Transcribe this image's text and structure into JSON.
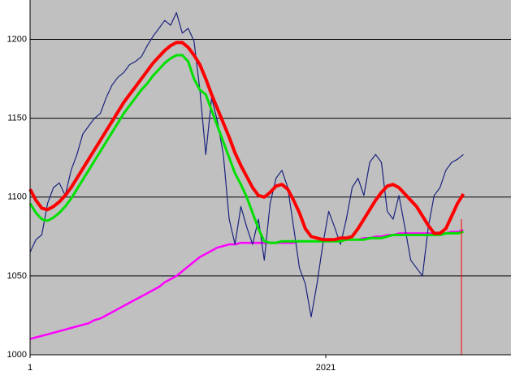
{
  "chart_data": {
    "type": "line",
    "x": [
      1,
      41,
      81,
      121,
      161,
      201,
      241,
      281,
      321,
      361,
      401,
      441,
      481,
      521,
      561,
      601,
      641,
      681,
      721,
      761,
      801,
      841,
      881,
      921,
      961,
      1001,
      1041,
      1081,
      1121,
      1161,
      1201,
      1241,
      1281,
      1321,
      1361,
      1401,
      1441,
      1481,
      1521,
      1561,
      1601,
      1641,
      1681,
      1721,
      1761,
      1801,
      1841,
      1881,
      1921,
      1961,
      2001,
      2041,
      2081,
      2121,
      2161,
      2201,
      2241,
      2281,
      2321,
      2361,
      2401,
      2441,
      2481,
      2521,
      2561,
      2601,
      2641,
      2681,
      2721,
      2761,
      2801,
      2841,
      2881,
      2921,
      2961
    ],
    "series": [
      {
        "color": "#1a237e",
        "values": [
          1065,
          1073,
          1076,
          1096,
          1106,
          1109,
          1101,
          1117,
          1127,
          1140,
          1145,
          1150,
          1153,
          1163,
          1171,
          1176,
          1179,
          1184,
          1186,
          1189,
          1196,
          1202,
          1207,
          1212,
          1209,
          1217,
          1204,
          1207,
          1199,
          1168,
          1127,
          1163,
          1148,
          1127,
          1086,
          1070,
          1094,
          1081,
          1070,
          1086,
          1060,
          1096,
          1112,
          1117,
          1106,
          1081,
          1055,
          1045,
          1024,
          1045,
          1070,
          1091,
          1081,
          1070,
          1086,
          1106,
          1112,
          1101,
          1122,
          1127,
          1122,
          1091,
          1086,
          1101,
          1081,
          1060,
          1055,
          1050,
          1081,
          1101,
          1106,
          1117,
          1122,
          1124,
          1127
        ]
      },
      {
        "color": "#ff0000",
        "values": [
          1105,
          1098,
          1093,
          1092,
          1094,
          1097,
          1101,
          1106,
          1112,
          1118,
          1124,
          1130,
          1136,
          1142,
          1148,
          1154,
          1160,
          1165,
          1170,
          1175,
          1180,
          1185,
          1189,
          1193,
          1196,
          1198,
          1198,
          1195,
          1190,
          1184,
          1175,
          1165,
          1156,
          1147,
          1138,
          1128,
          1120,
          1113,
          1106,
          1101,
          1100,
          1103,
          1107,
          1108,
          1105,
          1098,
          1090,
          1080,
          1075,
          1074,
          1073,
          1073,
          1073,
          1074,
          1074,
          1075,
          1080,
          1086,
          1092,
          1098,
          1103,
          1107,
          1108,
          1106,
          1102,
          1098,
          1094,
          1088,
          1082,
          1077,
          1077,
          1080,
          1088,
          1096,
          1102
        ]
      },
      {
        "color": "#00e000",
        "values": [
          1096,
          1090,
          1086,
          1085,
          1087,
          1090,
          1094,
          1099,
          1105,
          1111,
          1117,
          1123,
          1129,
          1135,
          1141,
          1147,
          1153,
          1158,
          1163,
          1168,
          1172,
          1177,
          1181,
          1185,
          1188,
          1190,
          1190,
          1186,
          1175,
          1168,
          1165,
          1155,
          1145,
          1135,
          1125,
          1115,
          1108,
          1100,
          1090,
          1080,
          1072,
          1071,
          1071,
          1072,
          1072,
          1072,
          1072,
          1072,
          1072,
          1072,
          1072,
          1072,
          1072,
          1072,
          1073,
          1073,
          1073,
          1073,
          1074,
          1074,
          1074,
          1075,
          1076,
          1076,
          1076,
          1076,
          1076,
          1076,
          1076,
          1076,
          1076,
          1077,
          1077,
          1077,
          1078
        ]
      },
      {
        "color": "#ff00ff",
        "values": [
          1010,
          1011,
          1012,
          1013,
          1014,
          1015,
          1016,
          1017,
          1018,
          1019,
          1020,
          1022,
          1023,
          1025,
          1027,
          1029,
          1031,
          1033,
          1035,
          1037,
          1039,
          1041,
          1043,
          1046,
          1048,
          1050,
          1053,
          1056,
          1059,
          1062,
          1064,
          1066,
          1068,
          1069,
          1070,
          1070,
          1071,
          1071,
          1071,
          1071,
          1071,
          1071,
          1071,
          1071,
          1071,
          1071,
          1072,
          1072,
          1072,
          1072,
          1072,
          1072,
          1072,
          1072,
          1073,
          1073,
          1073,
          1074,
          1074,
          1075,
          1075,
          1076,
          1076,
          1077,
          1077,
          1077,
          1077,
          1077,
          1077,
          1077,
          1077,
          1077,
          1078,
          1078,
          1079
        ]
      }
    ],
    "xlim": [
      1,
      3286
    ],
    "xticks": [
      1,
      2021
    ],
    "ylim": [
      1000,
      1225
    ],
    "yticks": [
      1000,
      1050,
      1100,
      1150,
      1200
    ],
    "grid": true
  }
}
